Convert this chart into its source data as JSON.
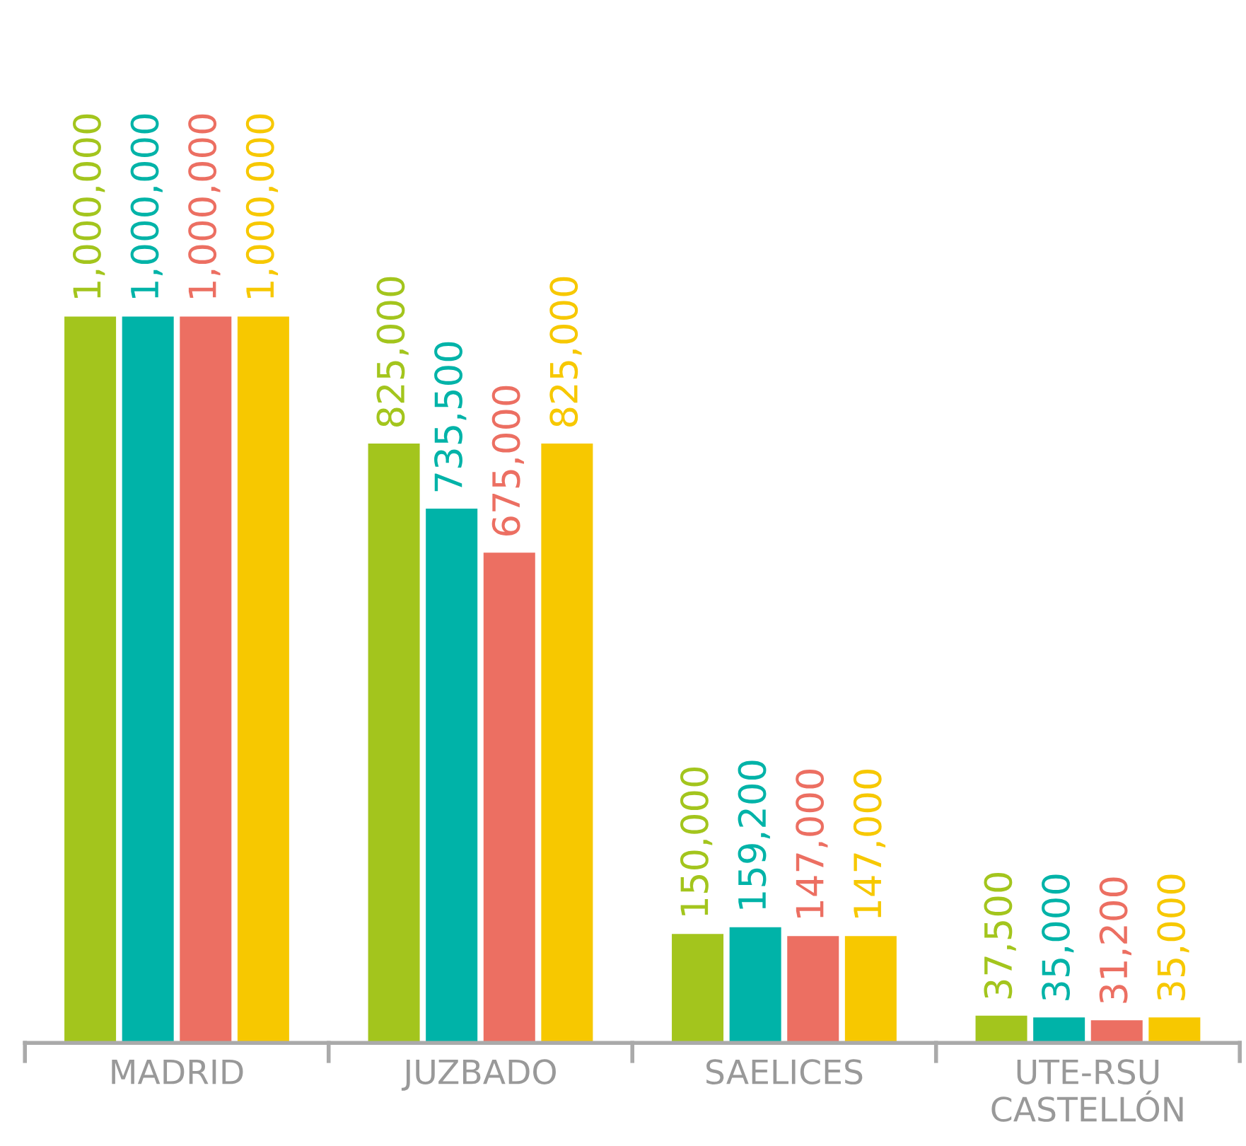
{
  "chart_data": {
    "type": "bar",
    "categories": [
      "MADRID",
      "JUZBADO",
      "SAELICES",
      "UTE-RSU\nCASTELLÓN"
    ],
    "series": [
      {
        "color": "#a3c51d",
        "values": [
          1000000,
          825000,
          150000,
          37500
        ],
        "value_labels": [
          "1,000,000",
          "825,000",
          "150,000",
          "37,500"
        ]
      },
      {
        "color": "#00b3a8",
        "values": [
          1000000,
          735500,
          159200,
          35000
        ],
        "value_labels": [
          "1,000,000",
          "735,500",
          "159,200",
          "35,000"
        ]
      },
      {
        "color": "#ec6f62",
        "values": [
          1000000,
          675000,
          147000,
          31200
        ],
        "value_labels": [
          "1,000,000",
          "675,000",
          "147,000",
          "31,200"
        ]
      },
      {
        "color": "#f7c800",
        "values": [
          1000000,
          825000,
          147000,
          35000
        ],
        "value_labels": [
          "1,000,000",
          "825,000",
          "147,000",
          "35,000"
        ]
      }
    ],
    "grid": false,
    "legend": false,
    "tick_labels": "x"
  }
}
